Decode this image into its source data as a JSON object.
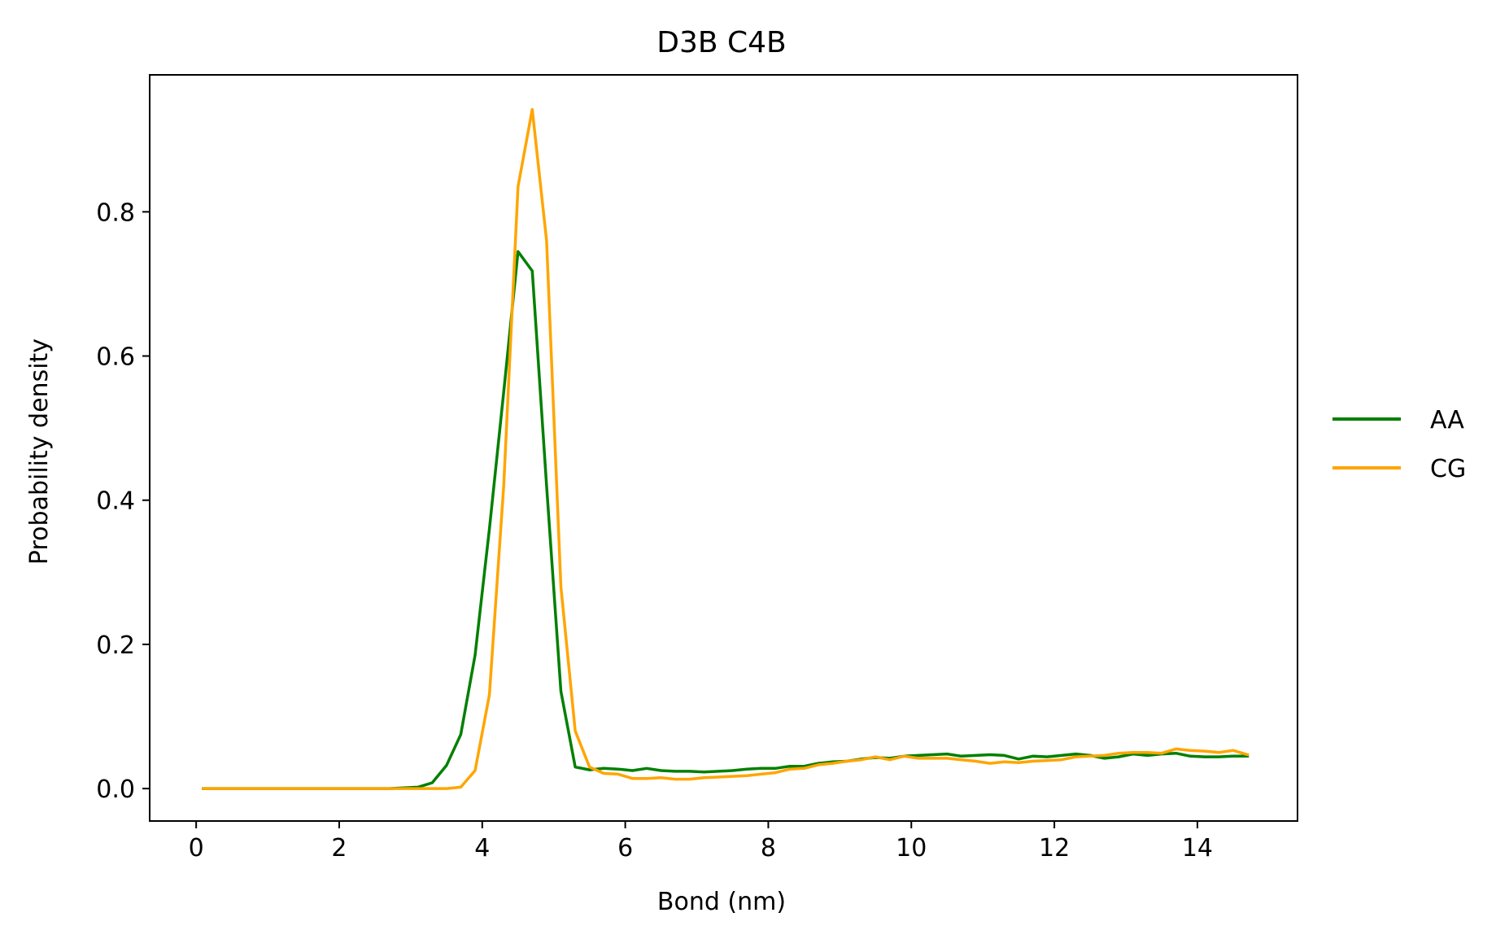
{
  "chart_data": {
    "type": "line",
    "title": "D3B C4B",
    "xlabel": "Bond (nm)",
    "ylabel": "Probability density",
    "xlim": [
      -0.65,
      15.4
    ],
    "ylim": [
      -0.045,
      0.99
    ],
    "xticks": [
      0,
      2,
      4,
      6,
      8,
      10,
      12,
      14
    ],
    "yticks": [
      0.0,
      0.2,
      0.4,
      0.6,
      0.8
    ],
    "xtick_labels": [
      "0",
      "2",
      "4",
      "6",
      "8",
      "10",
      "12",
      "14"
    ],
    "ytick_labels": [
      "0.0",
      "0.2",
      "0.4",
      "0.6",
      "0.8"
    ],
    "grid": false,
    "legend_position": "center-right outside plot",
    "x": [
      0.1,
      0.3,
      0.5,
      0.7,
      0.9,
      1.1,
      1.3,
      1.5,
      1.7,
      1.9,
      2.1,
      2.3,
      2.5,
      2.7,
      2.9,
      3.1,
      3.3,
      3.5,
      3.7,
      3.9,
      4.1,
      4.3,
      4.5,
      4.7,
      4.9,
      5.1,
      5.3,
      5.5,
      5.7,
      5.9,
      6.1,
      6.3,
      6.5,
      6.7,
      6.9,
      7.1,
      7.3,
      7.5,
      7.7,
      7.9,
      8.1,
      8.3,
      8.5,
      8.7,
      8.9,
      9.1,
      9.3,
      9.5,
      9.7,
      9.9,
      10.1,
      10.3,
      10.5,
      10.7,
      10.9,
      11.1,
      11.3,
      11.5,
      11.7,
      11.9,
      12.1,
      12.3,
      12.5,
      12.7,
      12.9,
      13.1,
      13.3,
      13.5,
      13.7,
      13.9,
      14.1,
      14.3,
      14.5,
      14.7
    ],
    "series": [
      {
        "name": "AA",
        "color": "#008000",
        "values": [
          0,
          0,
          0,
          0,
          0,
          0,
          0,
          0,
          0,
          0,
          0,
          0,
          0,
          0,
          0.001,
          0.002,
          0.008,
          0.032,
          0.075,
          0.185,
          0.36,
          0.55,
          0.745,
          0.718,
          0.42,
          0.135,
          0.03,
          0.026,
          0.028,
          0.027,
          0.025,
          0.028,
          0.025,
          0.024,
          0.024,
          0.023,
          0.024,
          0.025,
          0.027,
          0.028,
          0.028,
          0.031,
          0.031,
          0.035,
          0.037,
          0.038,
          0.041,
          0.043,
          0.042,
          0.045,
          0.046,
          0.047,
          0.048,
          0.045,
          0.046,
          0.047,
          0.046,
          0.041,
          0.045,
          0.044,
          0.046,
          0.048,
          0.046,
          0.042,
          0.044,
          0.048,
          0.046,
          0.048,
          0.049,
          0.045,
          0.044,
          0.044,
          0.045,
          0.045
        ]
      },
      {
        "name": "CG",
        "color": "#FFA500",
        "values": [
          0,
          0,
          0,
          0,
          0,
          0,
          0,
          0,
          0,
          0,
          0,
          0,
          0,
          0,
          0,
          0,
          0,
          0,
          0.002,
          0.025,
          0.13,
          0.42,
          0.835,
          0.942,
          0.76,
          0.28,
          0.08,
          0.03,
          0.021,
          0.02,
          0.014,
          0.014,
          0.015,
          0.013,
          0.013,
          0.015,
          0.016,
          0.017,
          0.018,
          0.02,
          0.022,
          0.027,
          0.028,
          0.033,
          0.035,
          0.038,
          0.04,
          0.044,
          0.04,
          0.045,
          0.042,
          0.042,
          0.042,
          0.04,
          0.038,
          0.035,
          0.037,
          0.036,
          0.038,
          0.039,
          0.04,
          0.044,
          0.045,
          0.046,
          0.049,
          0.05,
          0.05,
          0.049,
          0.055,
          0.053,
          0.052,
          0.05,
          0.053,
          0.047
        ]
      }
    ]
  }
}
